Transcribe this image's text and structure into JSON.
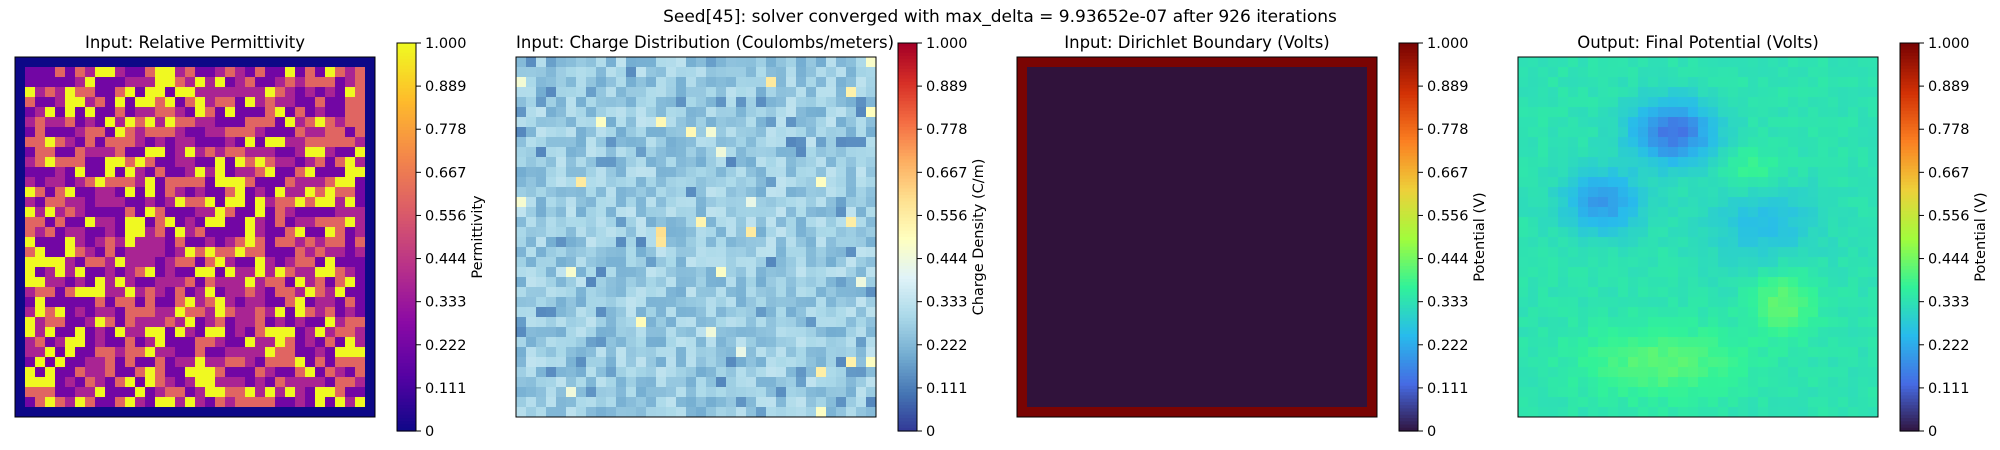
{
  "figure": {
    "suptitle": "Seed[45]: solver converged with max_delta = 9.93652e-07 after 926 iterations"
  },
  "chart_data": [
    {
      "type": "heatmap",
      "title": "Input: Relative Permittivity",
      "colormap": "plasma",
      "grid_size": 36,
      "colorbar_label": "Permittivity",
      "colorbar_ticks": [
        "0",
        "0.111",
        "0.222",
        "0.333",
        "0.444",
        "0.556",
        "0.667",
        "0.778",
        "0.889",
        "1.000"
      ],
      "vmin": 0,
      "vmax": 1,
      "description_values": "border value 0; interior random discrete levels in {0.2, 0.4, 0.6, 1.0}"
    },
    {
      "type": "heatmap",
      "title": "Input: Charge Distribution (Coulombs/meters)",
      "colormap": "RdYlBu_r",
      "grid_size": 36,
      "colorbar_label": "Charge Density (C/m)",
      "colorbar_ticks": [
        "0",
        "0.111",
        "0.222",
        "0.333",
        "0.444",
        "0.556",
        "0.667",
        "0.778",
        "0.889",
        "1.000"
      ],
      "vmin": 0,
      "vmax": 1,
      "description_values": "mostly 0.2-0.35 with sparse higher cells up to ~0.6"
    },
    {
      "type": "heatmap",
      "title": "Input: Dirichlet Boundary (Volts)",
      "colormap": "turbo",
      "grid_size": 36,
      "colorbar_label": "Potential (V)",
      "colorbar_ticks": [
        "0",
        "0.111",
        "0.222",
        "0.333",
        "0.444",
        "0.556",
        "0.667",
        "0.778",
        "0.889",
        "1.000"
      ],
      "vmin": 0,
      "vmax": 1,
      "description_values": "boundary ring value 1.0, interior value 0"
    },
    {
      "type": "heatmap",
      "title": "Output: Final Potential (Volts)",
      "colormap": "turbo",
      "grid_size": 36,
      "colorbar_label": "Potential (V)",
      "colorbar_ticks": [
        "0",
        "0.111",
        "0.222",
        "0.333",
        "0.444",
        "0.556",
        "0.667",
        "0.778",
        "0.889",
        "1.000"
      ],
      "vmin": 0,
      "vmax": 1,
      "description_values": "smooth field roughly 0.2-0.45, low well near upper center (~0.1)"
    }
  ]
}
